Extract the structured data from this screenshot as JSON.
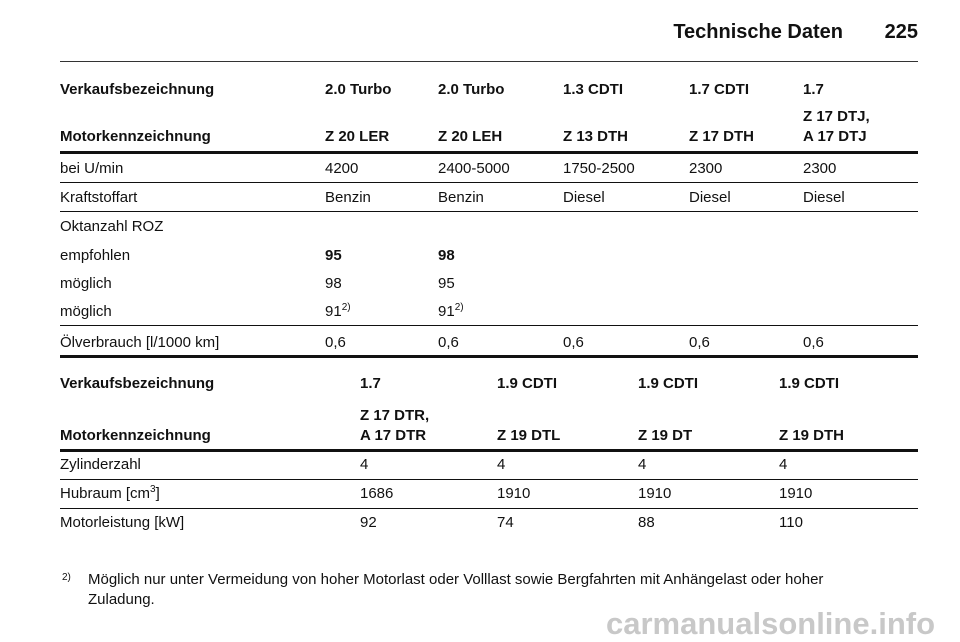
{
  "header": {
    "title": "Technische Daten",
    "page": "225"
  },
  "tables": [
    {
      "head": [
        [
          "Verkaufsbezeichnung",
          "2.0 Turbo",
          "2.0 Turbo",
          "1.3 CDTI",
          "1.7 CDTI",
          "1.7"
        ],
        [
          "Motorkennzeichnung",
          "Z 20 LER",
          "Z 20 LEH",
          "Z 13 DTH",
          "Z 17 DTH",
          "Z 17 DTJ,\nA 17 DTJ"
        ]
      ],
      "rows": [
        {
          "cells": [
            "bei U/min",
            "4200",
            "2400-5000",
            "1750-2500",
            "2300",
            "2300"
          ]
        },
        {
          "cells": [
            "Kraftstoffart",
            "Benzin",
            "Benzin",
            "Diesel",
            "Diesel",
            "Diesel"
          ]
        },
        {
          "cells": [
            "Oktanzahl ROZ"
          ]
        },
        {
          "cells": [
            "empfohlen",
            "95",
            "98"
          ],
          "bold": true
        },
        {
          "cells": [
            "möglich",
            "98",
            "95"
          ]
        },
        {
          "cells": [
            "möglich",
            {
              "text": "91",
              "sup": "2)"
            },
            {
              "text": "91",
              "sup": "2)"
            }
          ]
        },
        {
          "cells": [
            "Ölverbrauch [l/1000 km]",
            "0,6",
            "0,6",
            "0,6",
            "0,6",
            "0,6"
          ]
        }
      ]
    },
    {
      "head": [
        [
          "Verkaufsbezeichnung",
          "1.7",
          "1.9 CDTI",
          "1.9 CDTI",
          "1.9 CDTI"
        ],
        [
          "Motorkennzeichnung",
          "Z 17 DTR,\nA 17 DTR",
          "Z 19 DTL",
          "Z 19 DT",
          "Z 19 DTH"
        ]
      ],
      "rows": [
        {
          "cells": [
            "Zylinderzahl",
            "4",
            "4",
            "4",
            "4"
          ]
        },
        {
          "cells": [
            {
              "text": "Hubraum [cm",
              "sup": "3",
              "after": "]"
            },
            "1686",
            "1910",
            "1910",
            "1910"
          ]
        },
        {
          "cells": [
            "Motorleistung [kW]",
            "92",
            "74",
            "88",
            "110"
          ]
        }
      ]
    }
  ],
  "footnote": {
    "marker": "2)",
    "text": "Möglich nur unter Vermeidung von hoher Motorlast oder Volllast sowie Bergfahrten mit Anhängelast oder hoher\nZuladung."
  },
  "watermark": "carmanualsonline.info"
}
